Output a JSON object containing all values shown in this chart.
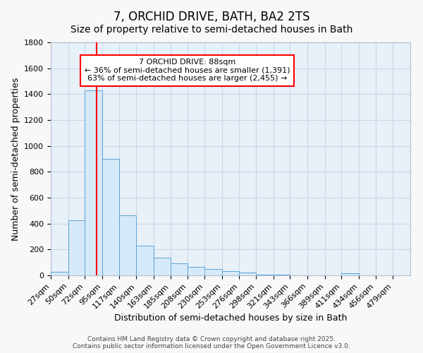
{
  "title": "7, ORCHID DRIVE, BATH, BA2 2TS",
  "subtitle": "Size of property relative to semi-detached houses in Bath",
  "xlabel": "Distribution of semi-detached houses by size in Bath",
  "ylabel": "Number of semi-detached properties",
  "bin_labels": [
    "27sqm",
    "50sqm",
    "72sqm",
    "95sqm",
    "117sqm",
    "140sqm",
    "163sqm",
    "185sqm",
    "208sqm",
    "230sqm",
    "253sqm",
    "276sqm",
    "298sqm",
    "321sqm",
    "343sqm",
    "366sqm",
    "389sqm",
    "411sqm",
    "434sqm",
    "456sqm",
    "479sqm"
  ],
  "bin_edges": [
    27,
    50,
    72,
    95,
    117,
    140,
    163,
    185,
    208,
    230,
    253,
    276,
    298,
    321,
    343,
    366,
    389,
    411,
    434,
    456,
    479,
    502
  ],
  "bar_values": [
    30,
    425,
    1430,
    900,
    465,
    230,
    135,
    95,
    65,
    50,
    35,
    20,
    8,
    3,
    2,
    1,
    1,
    15,
    0,
    0,
    0
  ],
  "bar_facecolor": "#d6e9f8",
  "bar_edgecolor": "#5ba3d9",
  "property_size": 88,
  "vline_color": "red",
  "annotation_text": "7 ORCHID DRIVE: 88sqm\n← 36% of semi-detached houses are smaller (1,391)\n63% of semi-detached houses are larger (2,455) →",
  "annotation_box_edgecolor": "red",
  "annotation_box_facecolor": "white",
  "ylim": [
    0,
    1800
  ],
  "yticks": [
    0,
    200,
    400,
    600,
    800,
    1000,
    1200,
    1400,
    1600,
    1800
  ],
  "grid_color": "#c8d8ec",
  "plot_background_color": "#e8f0f8",
  "figure_background_color": "#f8f8f8",
  "footer_text": "Contains HM Land Registry data © Crown copyright and database right 2025.\nContains public sector information licensed under the Open Government Licence v3.0.",
  "title_fontsize": 12,
  "subtitle_fontsize": 10,
  "label_fontsize": 9,
  "tick_fontsize": 8,
  "annotation_fontsize": 8
}
